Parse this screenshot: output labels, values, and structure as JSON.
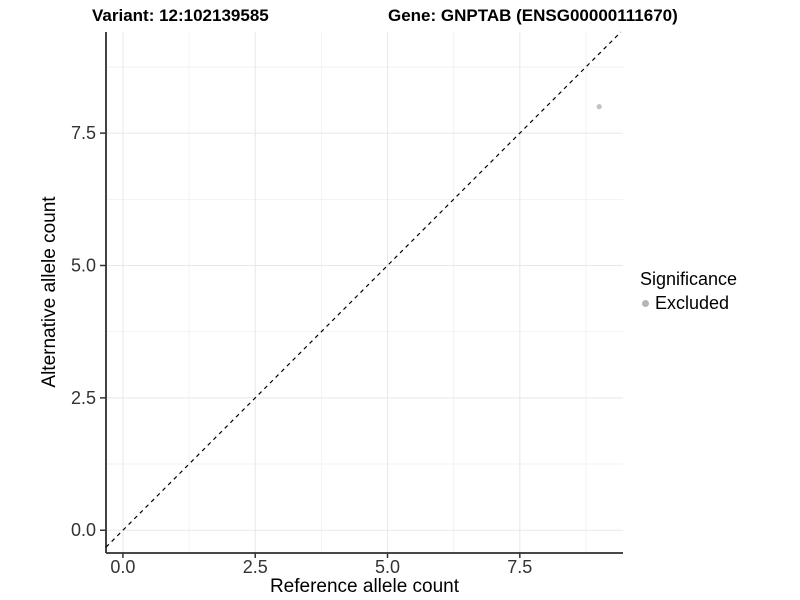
{
  "chart_data": {
    "type": "scatter",
    "title_left": "Variant: 12:102139585",
    "title_right": "Gene: GNPTAB (ENSG00000111670)",
    "xlabel": "Reference allele count",
    "ylabel": "Alternative allele count",
    "xlim": [
      -0.32,
      9.45
    ],
    "ylim": [
      -0.43,
      9.41
    ],
    "x_ticks": [
      0,
      2.5,
      5,
      7.5
    ],
    "x_tick_labels": [
      "0.0",
      "2.5",
      "5.0",
      "7.5"
    ],
    "y_ticks": [
      0,
      2.5,
      5,
      7.5
    ],
    "y_tick_labels": [
      "0.0",
      "2.5",
      "5.0",
      "7.5"
    ],
    "minor_ticks": [
      1.25,
      3.75,
      6.25,
      8.75
    ],
    "grid": true,
    "series": [
      {
        "name": "Excluded",
        "color": "#c2c2c2",
        "point_radius": 2.6,
        "points": [
          {
            "x": 9,
            "y": 8
          }
        ]
      }
    ],
    "reference_line": {
      "type": "abline",
      "slope": 1,
      "intercept": 0,
      "style": "dashed",
      "color": "#000000"
    },
    "legend": {
      "title": "Significance",
      "position": "right",
      "items": [
        {
          "label": "Excluded",
          "color": "#b5b5b5"
        }
      ]
    },
    "colors": {
      "background": "#ffffff",
      "grid_major": "#e8e8e8",
      "grid_minor": "#f2f2f2",
      "axis_line": "#2e2e2e",
      "tick_mark": "#333333",
      "tick_label": "#333333"
    }
  }
}
